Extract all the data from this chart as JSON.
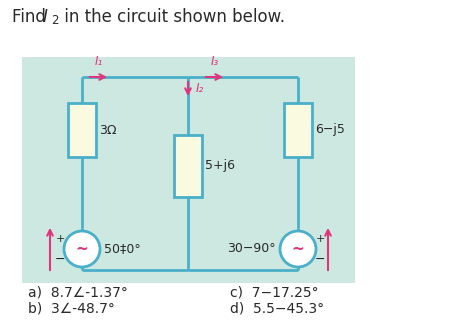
{
  "title_prefix": "Find ",
  "title_I": "I",
  "title_sub": "2",
  "title_suffix": " in the circuit shown below.",
  "bg_color": "#cce8e0",
  "wire_color": "#4aafc8",
  "resistor_fill": "#fafae0",
  "arrow_color": "#e0357a",
  "text_color": "#2a2a2a",
  "tilde_color": "#e0357a",
  "answers": [
    "a)  8.7∠-1.37°",
    "b)  3∠-48.7°",
    "c)  7−17.25°",
    "d)  5.5−45.3°"
  ],
  "source1_label": "50‡0°",
  "source2_label": "30−90°",
  "z1_label": "3Ω",
  "z2_label": "5+j6",
  "z3_label": "6−j5",
  "I1_label": "I₁",
  "I2_label": "I₂",
  "I3_label": "I₃",
  "fig_width": 4.53,
  "fig_height": 3.25,
  "dpi": 100
}
